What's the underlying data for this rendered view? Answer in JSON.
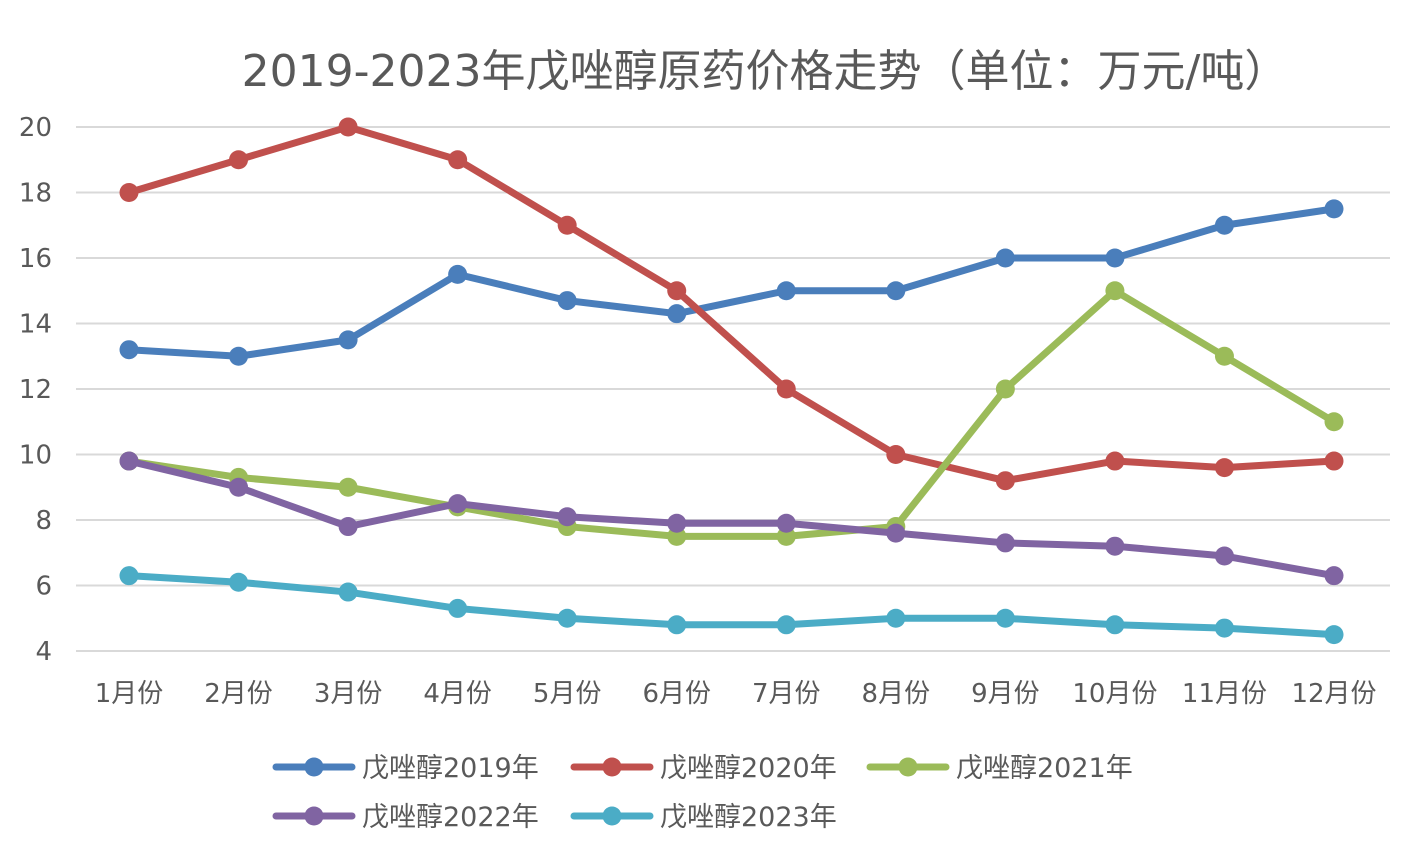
{
  "chart_data": {
    "type": "line",
    "title": "2019-2023年戊唑醇原药价格走势（单位：万元/吨）",
    "xlabel": "",
    "ylabel": "",
    "ylim": [
      4,
      20
    ],
    "y_ticks": [
      4,
      6,
      8,
      10,
      12,
      14,
      16,
      18,
      20
    ],
    "y_tick_labels": [
      "4",
      "6",
      "8",
      "10",
      "12",
      "14",
      "16",
      "18",
      "20"
    ],
    "categories": [
      "1月份",
      "2月份",
      "3月份",
      "4月份",
      "5月份",
      "6月份",
      "7月份",
      "8月份",
      "9月份",
      "10月份",
      "11月份",
      "12月份"
    ],
    "grid": true,
    "legend_position": "bottom",
    "series": [
      {
        "name": "戊唑醇2019年",
        "color": "#4a7ebb",
        "values": [
          13.2,
          13.0,
          13.5,
          15.5,
          14.7,
          14.3,
          15.0,
          15.0,
          16.0,
          16.0,
          17.0,
          17.5
        ]
      },
      {
        "name": "戊唑醇2020年",
        "color": "#c0504d",
        "values": [
          18.0,
          19.0,
          20.0,
          19.0,
          17.0,
          15.0,
          12.0,
          10.0,
          9.2,
          9.8,
          9.6,
          9.8
        ]
      },
      {
        "name": "戊唑醇2021年",
        "color": "#9bbb59",
        "values": [
          9.8,
          9.3,
          9.0,
          8.4,
          7.8,
          7.5,
          7.5,
          7.8,
          12.0,
          15.0,
          13.0,
          11.0
        ]
      },
      {
        "name": "戊唑醇2022年",
        "color": "#8064a2",
        "values": [
          9.8,
          9.0,
          7.8,
          8.5,
          8.1,
          7.9,
          7.9,
          7.6,
          7.3,
          7.2,
          6.9,
          6.3
        ]
      },
      {
        "name": "戊唑醇2023年",
        "color": "#4bacc6",
        "values": [
          6.3,
          6.1,
          5.8,
          5.3,
          5.0,
          4.8,
          4.8,
          5.0,
          5.0,
          4.8,
          4.7,
          4.5
        ]
      }
    ]
  }
}
